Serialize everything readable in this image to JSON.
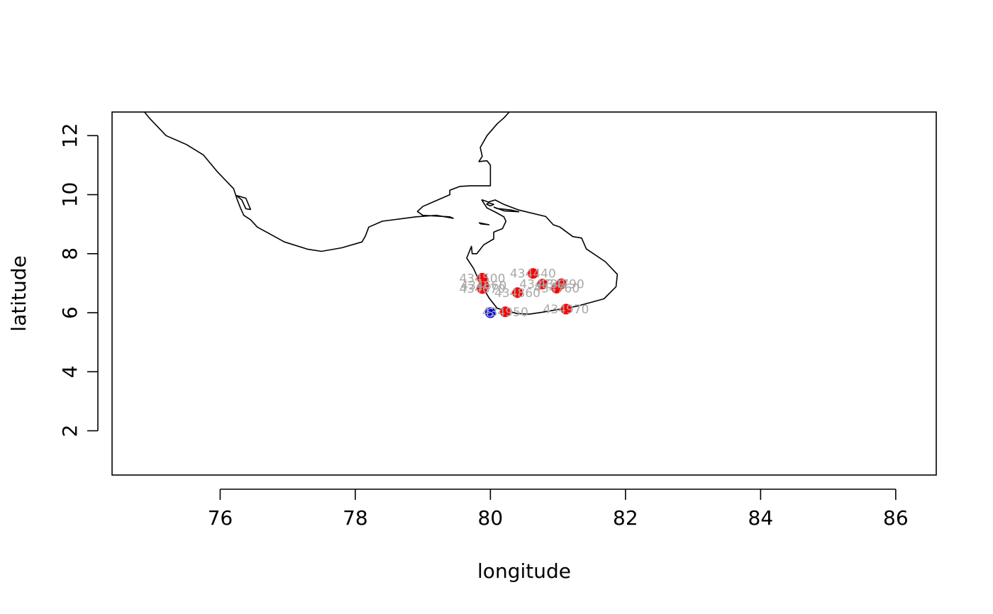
{
  "chart_data": {
    "type": "scatter",
    "title": "",
    "xlabel": "longitude",
    "ylabel": "latitude",
    "xlim": [
      74.4,
      86.6
    ],
    "ylim": [
      0.5,
      12.8
    ],
    "x_ticks": [
      76,
      78,
      80,
      82,
      84,
      86
    ],
    "y_ticks": [
      2,
      4,
      6,
      8,
      10,
      12
    ],
    "grid": false,
    "legend": "none",
    "series": [
      {
        "color": "#ff0000",
        "points": [
          {
            "x": 79.88,
            "y": 7.17,
            "label": "434500"
          },
          {
            "x": 79.9,
            "y": 6.93,
            "label": "434660"
          },
          {
            "x": 79.88,
            "y": 6.82,
            "label": "434670"
          },
          {
            "x": 80.63,
            "y": 7.33,
            "label": "434440"
          },
          {
            "x": 80.77,
            "y": 6.97,
            "label": "434730"
          },
          {
            "x": 81.05,
            "y": 6.98,
            "label": "434790"
          },
          {
            "x": 80.98,
            "y": 6.83,
            "label": "434760"
          },
          {
            "x": 80.4,
            "y": 6.68,
            "label": "434860"
          },
          {
            "x": 80.22,
            "y": 6.03,
            "label": "434950"
          },
          {
            "x": 81.12,
            "y": 6.12,
            "label": "434970"
          }
        ]
      },
      {
        "color": "#0000ee",
        "points": [
          {
            "x": 80.0,
            "y": 6.0,
            "label": "S"
          }
        ]
      }
    ],
    "coastline": [
      [
        [
          74.88,
          12.8
        ],
        [
          74.95,
          12.6
        ],
        [
          75.2,
          12.0
        ],
        [
          75.5,
          11.7
        ],
        [
          75.75,
          11.35
        ],
        [
          75.95,
          10.8
        ],
        [
          76.2,
          10.2
        ],
        [
          76.25,
          9.85
        ],
        [
          76.3,
          9.55
        ],
        [
          76.35,
          9.3
        ],
        [
          76.45,
          9.15
        ],
        [
          76.55,
          8.9
        ],
        [
          76.75,
          8.65
        ],
        [
          76.95,
          8.4
        ],
        [
          77.3,
          8.15
        ],
        [
          77.5,
          8.08
        ],
        [
          77.8,
          8.2
        ],
        [
          78.1,
          8.4
        ],
        [
          78.15,
          8.6
        ],
        [
          78.2,
          8.9
        ],
        [
          78.4,
          9.1
        ],
        [
          78.9,
          9.25
        ],
        [
          79.2,
          9.3
        ],
        [
          79.45,
          9.2
        ],
        [
          79.4,
          9.25
        ],
        [
          79.0,
          9.3
        ],
        [
          78.92,
          9.43
        ],
        [
          79.0,
          9.6
        ],
        [
          79.2,
          9.8
        ],
        [
          79.4,
          10.0
        ],
        [
          79.4,
          10.15
        ],
        [
          79.55,
          10.28
        ],
        [
          79.7,
          10.3
        ],
        [
          79.85,
          10.3
        ],
        [
          79.95,
          10.3
        ],
        [
          80.0,
          10.3
        ],
        [
          80.0,
          10.55
        ],
        [
          80.0,
          11.0
        ],
        [
          79.95,
          11.15
        ],
        [
          79.83,
          11.12
        ],
        [
          79.88,
          11.3
        ],
        [
          79.85,
          11.6
        ],
        [
          79.95,
          12.0
        ],
        [
          80.1,
          12.4
        ],
        [
          80.2,
          12.6
        ],
        [
          80.28,
          12.8
        ]
      ],
      [
        [
          79.87,
          9.83
        ],
        [
          79.97,
          9.75
        ],
        [
          80.07,
          9.82
        ],
        [
          80.2,
          9.67
        ],
        [
          80.42,
          9.48
        ],
        [
          80.82,
          9.26
        ],
        [
          80.93,
          8.98
        ],
        [
          81.03,
          8.9
        ],
        [
          81.22,
          8.58
        ],
        [
          81.35,
          8.53
        ],
        [
          81.42,
          8.16
        ],
        [
          81.7,
          7.73
        ],
        [
          81.88,
          7.3
        ],
        [
          81.86,
          6.88
        ],
        [
          81.68,
          6.47
        ],
        [
          81.28,
          6.22
        ],
        [
          80.78,
          6.02
        ],
        [
          80.58,
          5.95
        ],
        [
          80.4,
          5.97
        ],
        [
          80.1,
          6.15
        ],
        [
          79.98,
          6.5
        ],
        [
          79.85,
          7.0
        ],
        [
          79.75,
          7.5
        ],
        [
          79.65,
          7.85
        ],
        [
          79.72,
          8.25
        ],
        [
          79.73,
          8.0
        ],
        [
          79.8,
          8.0
        ],
        [
          79.85,
          8.15
        ],
        [
          79.9,
          8.3
        ],
        [
          80.05,
          8.5
        ],
        [
          80.05,
          8.73
        ],
        [
          80.18,
          8.85
        ],
        [
          80.23,
          9.1
        ],
        [
          80.2,
          9.25
        ],
        [
          80.08,
          9.4
        ],
        [
          79.95,
          9.55
        ],
        [
          79.9,
          9.72
        ],
        [
          79.87,
          9.83
        ]
      ],
      [
        [
          80.05,
          9.58
        ],
        [
          80.2,
          9.45
        ],
        [
          80.42,
          9.42
        ],
        [
          80.3,
          9.48
        ],
        [
          80.1,
          9.53
        ],
        [
          80.05,
          9.58
        ]
      ],
      [
        [
          79.94,
          9.68
        ],
        [
          80.0,
          9.62
        ],
        [
          80.05,
          9.67
        ],
        [
          79.98,
          9.72
        ],
        [
          79.94,
          9.68
        ]
      ],
      [
        [
          79.83,
          9.05
        ],
        [
          79.98,
          8.98
        ],
        [
          79.86,
          9.01
        ],
        [
          79.83,
          9.05
        ]
      ],
      [
        [
          76.24,
          9.97
        ],
        [
          76.38,
          9.88
        ],
        [
          76.45,
          9.5
        ],
        [
          76.38,
          9.52
        ],
        [
          76.32,
          9.82
        ],
        [
          76.24,
          9.97
        ]
      ]
    ]
  }
}
